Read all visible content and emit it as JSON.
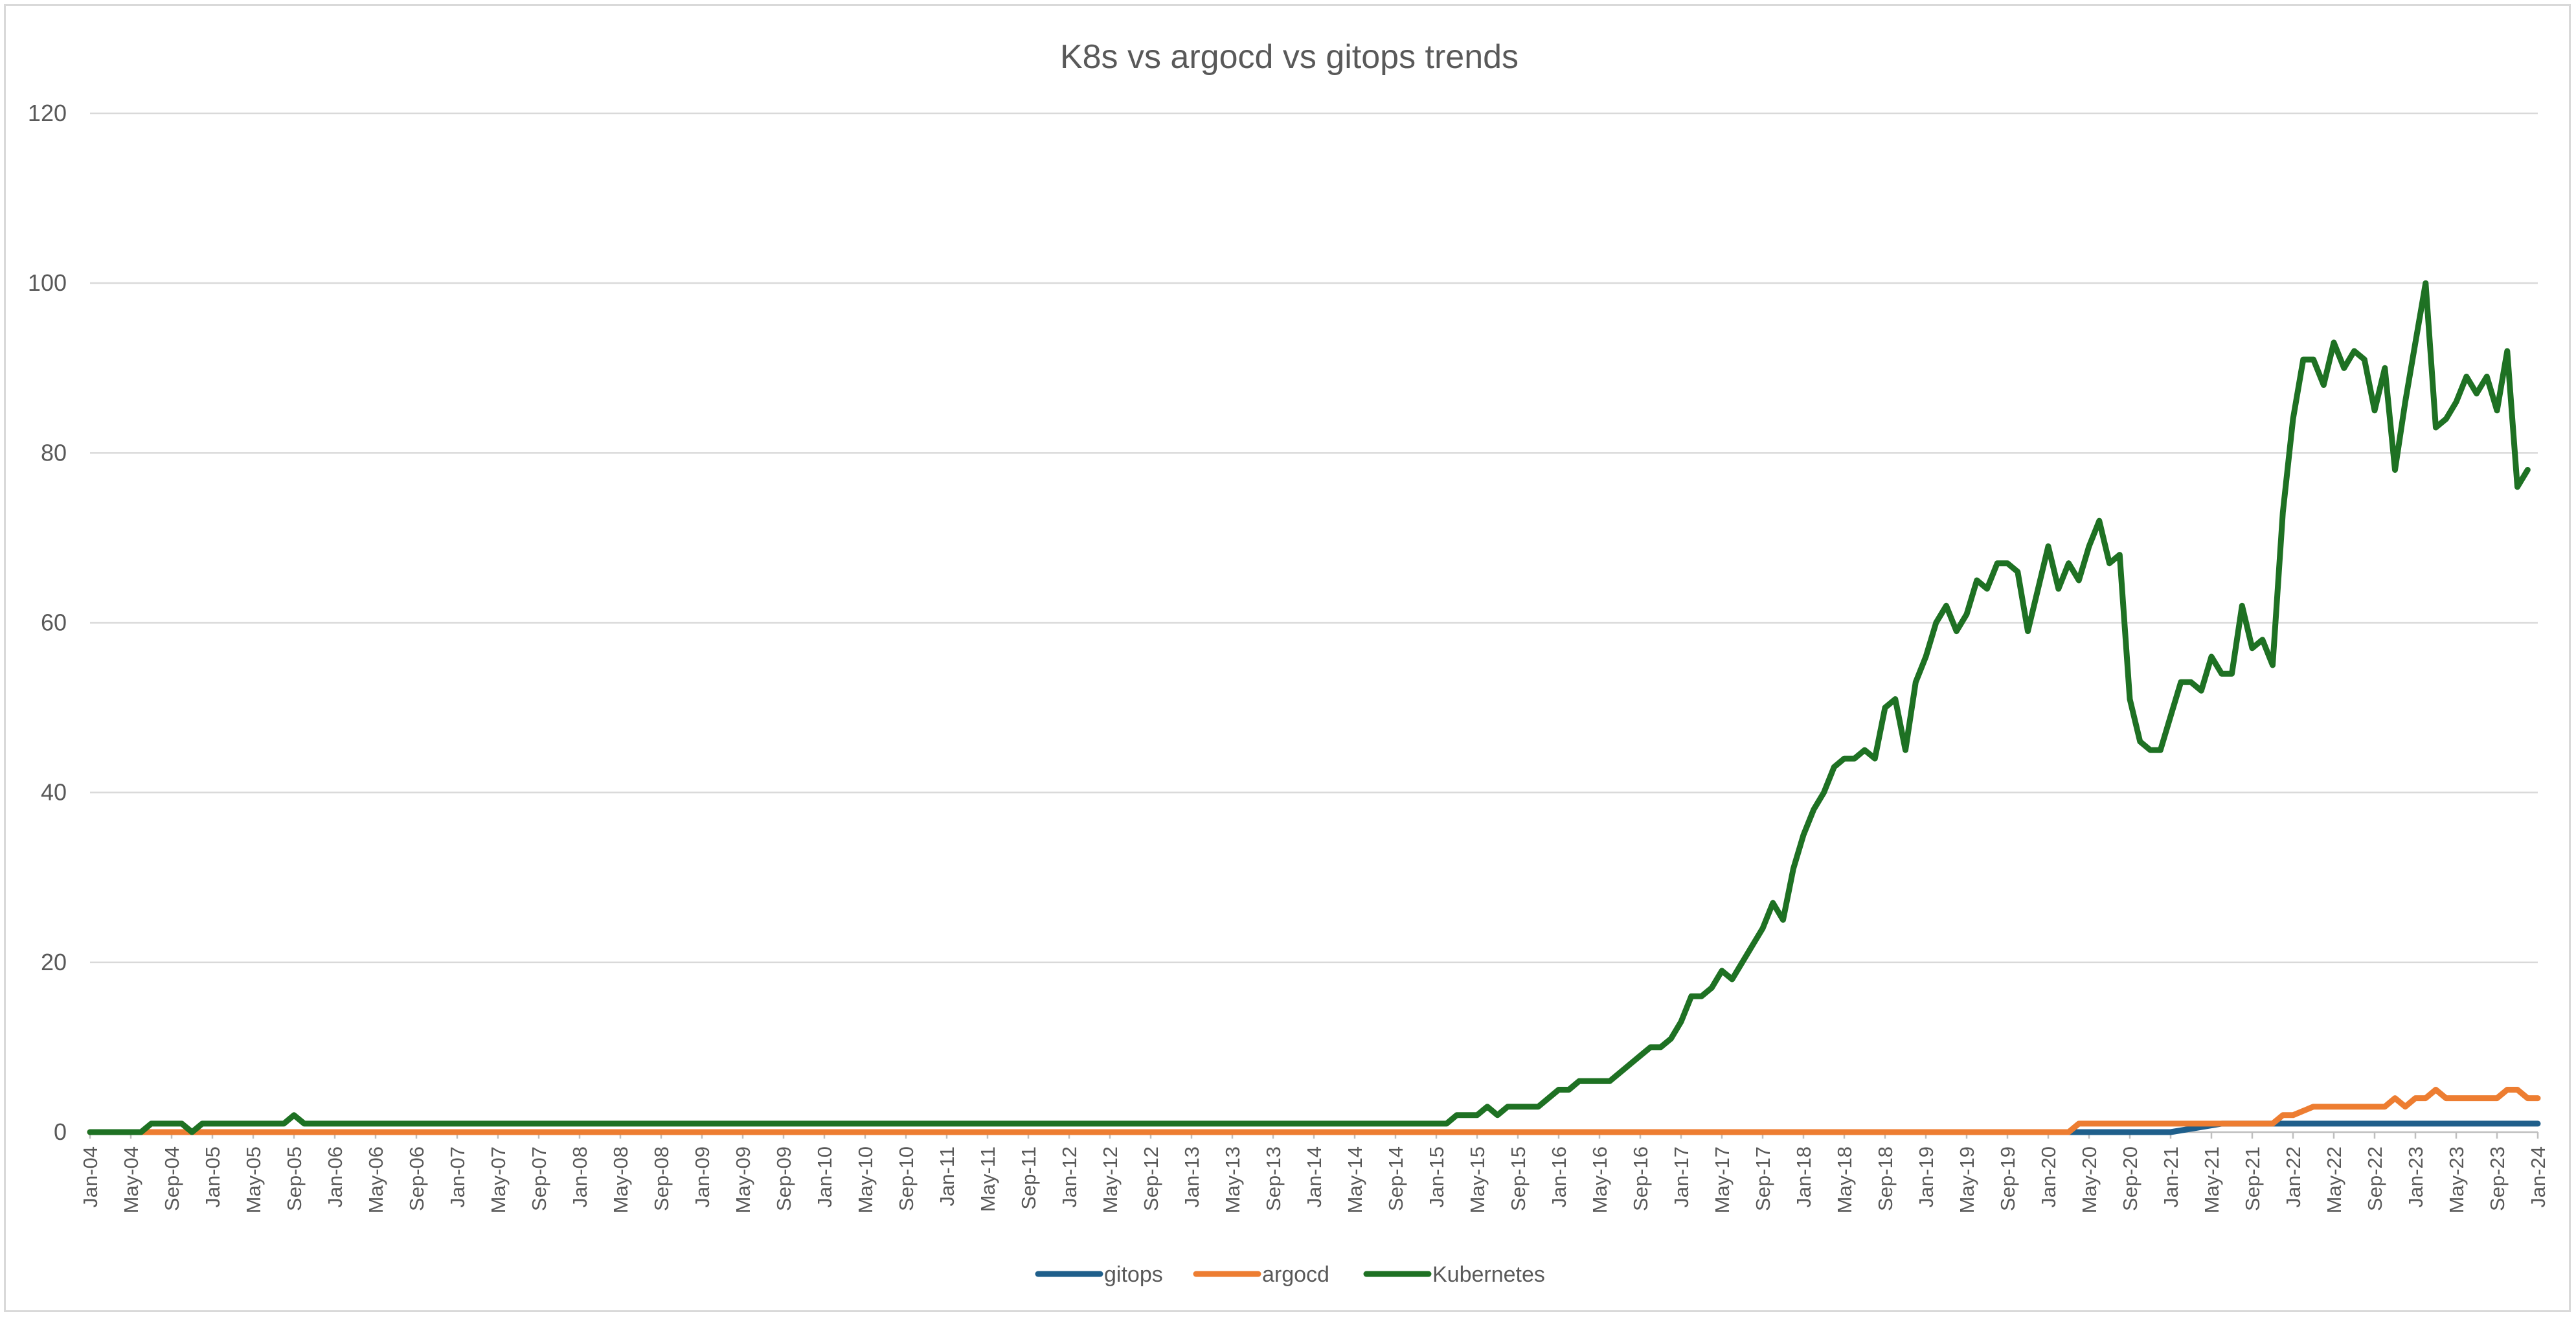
{
  "chart_data": {
    "type": "line",
    "title": "K8s vs argocd vs gitops trends",
    "xlabel": "",
    "ylabel": "",
    "ylim": [
      0,
      120
    ],
    "yticks": [
      0,
      20,
      40,
      60,
      80,
      100,
      120
    ],
    "grid": true,
    "legend_position": "bottom",
    "x_start": "Jan-04",
    "x_end": "Jan-24",
    "x_tick_labels": [
      "Jan-04",
      "May-04",
      "Sep-04",
      "Jan-05",
      "May-05",
      "Sep-05",
      "Jan-06",
      "May-06",
      "Sep-06",
      "Jan-07",
      "May-07",
      "Sep-07",
      "Jan-08",
      "May-08",
      "Sep-08",
      "Jan-09",
      "May-09",
      "Sep-09",
      "Jan-10",
      "May-10",
      "Sep-10",
      "Jan-11",
      "May-11",
      "Sep-11",
      "Jan-12",
      "May-12",
      "Sep-12",
      "Jan-13",
      "May-13",
      "Sep-13",
      "Jan-14",
      "May-14",
      "Sep-14",
      "Jan-15",
      "May-15",
      "Sep-15",
      "Jan-16",
      "May-16",
      "Sep-16",
      "Jan-17",
      "May-17",
      "Sep-17",
      "Jan-18",
      "May-18",
      "Sep-18",
      "Jan-19",
      "May-19",
      "Sep-19",
      "Jan-20",
      "May-20",
      "Sep-20",
      "Jan-21",
      "May-21",
      "Sep-21",
      "Jan-22",
      "May-22",
      "Sep-22",
      "Jan-23",
      "May-23",
      "Sep-23",
      "Jan-24"
    ],
    "series": [
      {
        "name": "gitops",
        "color": "#1f5f8b",
        "points": [
          [
            "Jan-04",
            0
          ],
          [
            "Jan-21",
            0
          ],
          [
            "Jun-21",
            1
          ],
          [
            "Jan-24",
            1
          ]
        ]
      },
      {
        "name": "argocd",
        "color": "#ed7d31",
        "points": [
          [
            "Jan-04",
            0
          ],
          [
            "Mar-20",
            0
          ],
          [
            "Apr-20",
            1
          ],
          [
            "Nov-21",
            1
          ],
          [
            "Dec-21",
            2
          ],
          [
            "Jan-22",
            2
          ],
          [
            "Mar-22",
            3
          ],
          [
            "Oct-22",
            3
          ],
          [
            "Nov-22",
            4
          ],
          [
            "Dec-22",
            3
          ],
          [
            "Jan-23",
            4
          ],
          [
            "Feb-23",
            4
          ],
          [
            "Mar-23",
            5
          ],
          [
            "Apr-23",
            4
          ],
          [
            "Jun-23",
            4
          ],
          [
            "Jul-23",
            4
          ],
          [
            "Sep-23",
            4
          ],
          [
            "Oct-23",
            5
          ],
          [
            "Nov-23",
            5
          ],
          [
            "Dec-23",
            4
          ],
          [
            "Jan-24",
            4
          ]
        ]
      },
      {
        "name": "Kubernetes",
        "color": "#1e7123",
        "points": [
          [
            "Jan-04",
            0
          ],
          [
            "Jun-04",
            0
          ],
          [
            "Jul-04",
            1
          ],
          [
            "Oct-04",
            1
          ],
          [
            "Nov-04",
            0
          ],
          [
            "Dec-04",
            1
          ],
          [
            "Aug-05",
            1
          ],
          [
            "Sep-05",
            2
          ],
          [
            "Oct-05",
            1
          ],
          [
            "Feb-15",
            1
          ],
          [
            "Mar-15",
            2
          ],
          [
            "May-15",
            2
          ],
          [
            "Jun-15",
            3
          ],
          [
            "Jul-15",
            2
          ],
          [
            "Aug-15",
            3
          ],
          [
            "Nov-15",
            3
          ],
          [
            "Jan-16",
            5
          ],
          [
            "Feb-16",
            5
          ],
          [
            "Mar-16",
            6
          ],
          [
            "Jun-16",
            6
          ],
          [
            "Aug-16",
            8
          ],
          [
            "Oct-16",
            10
          ],
          [
            "Nov-16",
            10
          ],
          [
            "Dec-16",
            11
          ],
          [
            "Jan-17",
            13
          ],
          [
            "Feb-17",
            16
          ],
          [
            "Mar-17",
            16
          ],
          [
            "Apr-17",
            17
          ],
          [
            "May-17",
            19
          ],
          [
            "Jun-17",
            18
          ],
          [
            "Aug-17",
            22
          ],
          [
            "Sep-17",
            24
          ],
          [
            "Oct-17",
            27
          ],
          [
            "Nov-17",
            25
          ],
          [
            "Dec-17",
            31
          ],
          [
            "Jan-18",
            35
          ],
          [
            "Feb-18",
            38
          ],
          [
            "Mar-18",
            40
          ],
          [
            "Apr-18",
            43
          ],
          [
            "May-18",
            44
          ],
          [
            "Jun-18",
            44
          ],
          [
            "Jul-18",
            45
          ],
          [
            "Aug-18",
            44
          ],
          [
            "Sep-18",
            50
          ],
          [
            "Oct-18",
            51
          ],
          [
            "Nov-18",
            45
          ],
          [
            "Dec-18",
            53
          ],
          [
            "Jan-19",
            56
          ],
          [
            "Feb-19",
            60
          ],
          [
            "Mar-19",
            62
          ],
          [
            "Apr-19",
            59
          ],
          [
            "May-19",
            61
          ],
          [
            "Jun-19",
            65
          ],
          [
            "Jul-19",
            64
          ],
          [
            "Aug-19",
            67
          ],
          [
            "Sep-19",
            67
          ],
          [
            "Oct-19",
            66
          ],
          [
            "Nov-19",
            59
          ],
          [
            "Dec-19",
            64
          ],
          [
            "Jan-20",
            69
          ],
          [
            "Feb-20",
            64
          ],
          [
            "Mar-20",
            67
          ],
          [
            "Apr-20",
            65
          ],
          [
            "May-20",
            69
          ],
          [
            "Jun-20",
            72
          ],
          [
            "Jul-20",
            67
          ],
          [
            "Aug-20",
            68
          ],
          [
            "Sep-20",
            51
          ],
          [
            "Oct-20",
            46
          ],
          [
            "Nov-20",
            45
          ],
          [
            "Dec-20",
            45
          ],
          [
            "Jan-21",
            49
          ],
          [
            "Feb-21",
            53
          ],
          [
            "Mar-21",
            53
          ],
          [
            "Apr-21",
            52
          ],
          [
            "May-21",
            56
          ],
          [
            "Jun-21",
            54
          ],
          [
            "Jul-21",
            54
          ],
          [
            "Aug-21",
            62
          ],
          [
            "Sep-21",
            57
          ],
          [
            "Oct-21",
            58
          ],
          [
            "Nov-21",
            55
          ],
          [
            "Dec-21",
            73
          ],
          [
            "Jan-22",
            84
          ],
          [
            "Feb-22",
            91
          ],
          [
            "Mar-22",
            91
          ],
          [
            "Apr-22",
            88
          ],
          [
            "May-22",
            93
          ],
          [
            "Jun-22",
            90
          ],
          [
            "Jul-22",
            92
          ],
          [
            "Aug-22",
            91
          ],
          [
            "Sep-22",
            85
          ],
          [
            "Oct-22",
            90
          ],
          [
            "Nov-22",
            78
          ],
          [
            "Dec-22",
            86
          ],
          [
            "Jan-23",
            93
          ],
          [
            "Feb-23",
            100
          ],
          [
            "Mar-23",
            83
          ],
          [
            "Apr-23",
            84
          ],
          [
            "May-23",
            86
          ],
          [
            "Jun-23",
            89
          ],
          [
            "Jul-23",
            87
          ],
          [
            "Aug-23",
            89
          ],
          [
            "Sep-23",
            85
          ],
          [
            "Oct-23",
            92
          ],
          [
            "Nov-23",
            76
          ],
          [
            "Dec-23",
            78
          ]
        ]
      }
    ]
  }
}
